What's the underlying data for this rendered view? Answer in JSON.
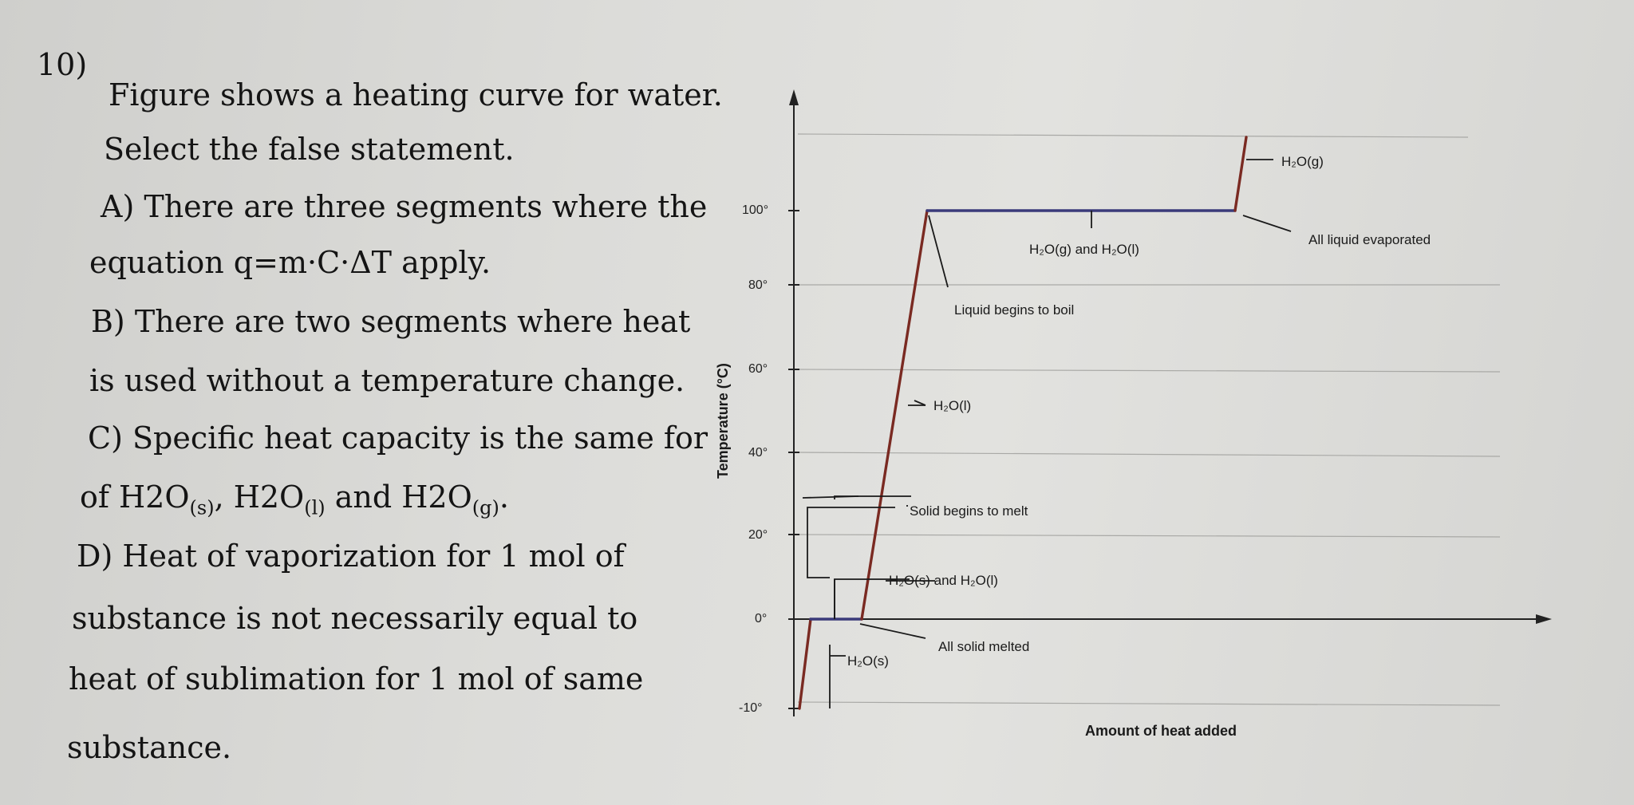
{
  "question": {
    "number": "10)",
    "line1": "Figure shows a heating curve for water.",
    "line2": "Select the false statement.",
    "a1": "A) There are three segments where the",
    "a2": "equation q=m·C·ΔT apply.",
    "b1": "B) There are two segments where heat",
    "b2": "is used without a temperature change.",
    "c1": "C) Specific heat capacity is the same for",
    "c2_prefix": "of H",
    "c2_s_phase": "(s)",
    "c2_l_phase": "(l)",
    "c2_g_phase": "(g)",
    "c2_and": "and",
    "d1": "D) Heat of vaporization for 1 mol of",
    "d2": "substance is not necessarily equal to",
    "d3": "heat of sublimation for 1 mol of same",
    "d4": "substance."
  },
  "chart_data": {
    "type": "line",
    "title": "",
    "xlabel": "Amount of heat added",
    "ylabel": "Temperature (°C)",
    "y_ticks": [
      "100°",
      "80°",
      "60°",
      "40°",
      "20°",
      "0°",
      "-10°"
    ],
    "ylim": [
      -10,
      100
    ],
    "x_units": "relative heat added (no numeric scale)",
    "series": [
      {
        "x": [
          0,
          1,
          2,
          9,
          19,
          24
        ],
        "y": [
          -10,
          0,
          0,
          100,
          100,
          120
        ]
      }
    ],
    "annotations": {
      "ice": "H₂O(s)",
      "solid_melt": "H₂O(s) and H₂O(l)",
      "all_solid_melted": "All solid melted",
      "solid_begins": "Solid begins to melt",
      "liquid": "H₂O(l)",
      "liquid_boil": "Liquid begins to boil",
      "gas_liquid": "H₂O(g) and H₂O(l)",
      "all_evap": "All liquid evaporated",
      "gas": "H₂O(g)"
    },
    "colors": {
      "curve": "#7a2a22",
      "plateau": "#3a3a7a"
    }
  }
}
